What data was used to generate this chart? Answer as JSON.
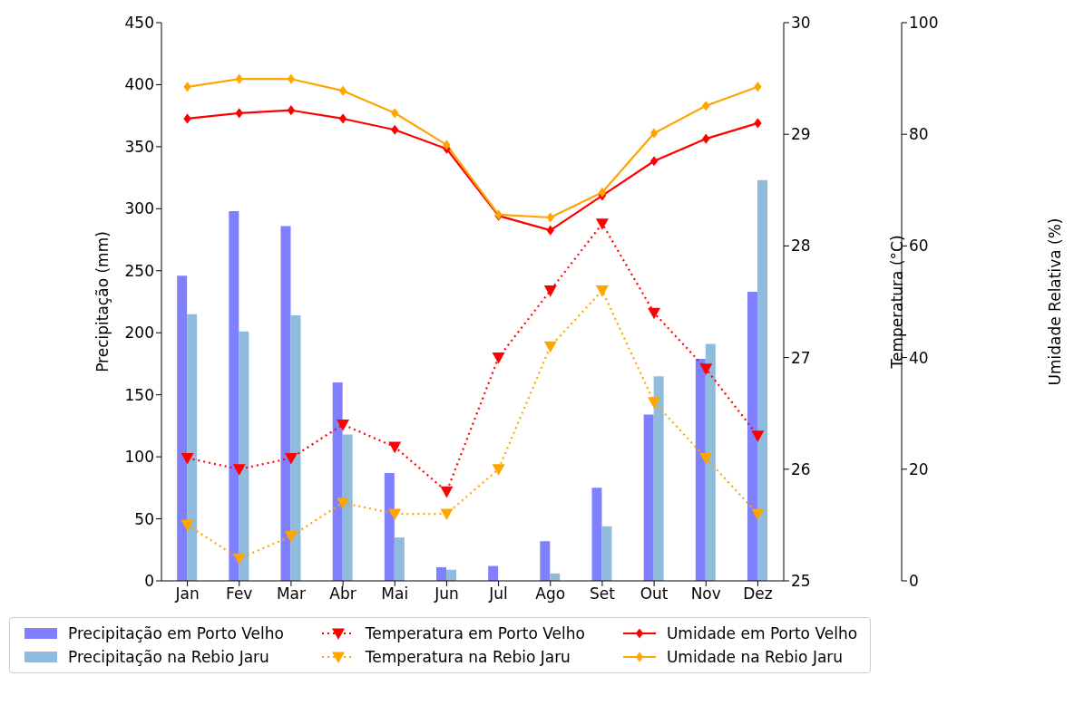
{
  "chart_data": {
    "type": "bar",
    "categories": [
      "Jan",
      "Fev",
      "Mar",
      "Abr",
      "Mai",
      "Jun",
      "Jul",
      "Ago",
      "Set",
      "Out",
      "Nov",
      "Dez"
    ],
    "ylabel": "Precipitação (mm)",
    "y2label": "Temperatura (°C)",
    "y3label": "Umidade Relativa (%)",
    "ylim": [
      0,
      450
    ],
    "yticks": [
      0,
      50,
      100,
      150,
      200,
      250,
      300,
      350,
      400,
      450
    ],
    "y2lim": [
      25,
      30
    ],
    "y2ticks": [
      25,
      26,
      27,
      28,
      29,
      30
    ],
    "y3lim": [
      0,
      100
    ],
    "y3ticks": [
      0,
      20,
      40,
      60,
      80,
      100
    ],
    "grid": false,
    "legend": "bottom",
    "series": [
      {
        "name": "Precipitação em Porto Velho",
        "color": "#8080ff",
        "values": [
          246,
          298,
          286,
          160,
          87,
          11,
          12,
          32,
          75,
          134,
          179,
          233
        ]
      },
      {
        "name": "Precipitação na Rebio Jaru",
        "color": "#8fbcdc",
        "values": [
          215,
          201,
          214,
          118,
          35,
          9,
          0,
          6,
          44,
          165,
          191,
          323
        ]
      },
      {
        "type": "line",
        "name": "Temperatura em Porto Velho",
        "color": "#ff0000",
        "axis": "y2",
        "marker": "triangle",
        "line_style": "dotted",
        "values": [
          26.1,
          26.0,
          26.1,
          26.4,
          26.2,
          25.8,
          27.0,
          27.6,
          28.2,
          27.4,
          26.9,
          26.3
        ]
      },
      {
        "type": "line",
        "name": "Temperatura na Rebio Jaru",
        "color": "#ffa500",
        "axis": "y2",
        "marker": "triangle",
        "line_style": "dotted",
        "values": [
          25.5,
          25.2,
          25.4,
          25.7,
          25.6,
          25.6,
          26.0,
          27.1,
          27.6,
          26.6,
          26.1,
          25.6
        ]
      },
      {
        "type": "line",
        "name": "Umidade em Porto Velho",
        "color": "#ff0000",
        "axis": "y3",
        "marker": "diamond",
        "line_style": "solid",
        "values": [
          82.8,
          83.8,
          84.3,
          82.8,
          80.8,
          77.4,
          65.4,
          62.8,
          69.0,
          75.2,
          79.2,
          82.0
        ]
      },
      {
        "type": "line",
        "name": "Umidade na Rebio Jaru",
        "color": "#ffa500",
        "axis": "y3",
        "marker": "diamond",
        "line_style": "solid",
        "values": [
          88.5,
          89.9,
          89.9,
          87.8,
          83.8,
          78.1,
          65.6,
          65.1,
          69.6,
          80.2,
          85.1,
          88.5
        ]
      }
    ]
  }
}
